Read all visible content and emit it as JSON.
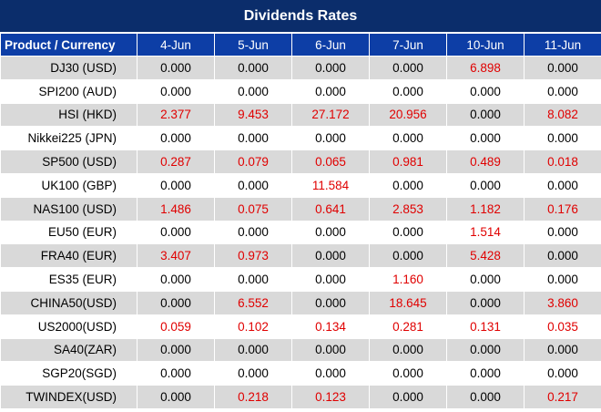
{
  "title": "Dividends Rates",
  "columns": [
    "Product / Currency",
    "4-Jun",
    "5-Jun",
    "6-Jun",
    "7-Jun",
    "10-Jun",
    "11-Jun"
  ],
  "rows": [
    {
      "name": "DJ30 (USD)",
      "values": [
        "0.000",
        "0.000",
        "0.000",
        "0.000",
        "6.898",
        "0.000"
      ]
    },
    {
      "name": "SPI200 (AUD)",
      "values": [
        "0.000",
        "0.000",
        "0.000",
        "0.000",
        "0.000",
        "0.000"
      ]
    },
    {
      "name": "HSI (HKD)",
      "values": [
        "2.377",
        "9.453",
        "27.172",
        "20.956",
        "0.000",
        "8.082"
      ]
    },
    {
      "name": "Nikkei225 (JPN)",
      "values": [
        "0.000",
        "0.000",
        "0.000",
        "0.000",
        "0.000",
        "0.000"
      ]
    },
    {
      "name": "SP500 (USD)",
      "values": [
        "0.287",
        "0.079",
        "0.065",
        "0.981",
        "0.489",
        "0.018"
      ]
    },
    {
      "name": "UK100 (GBP)",
      "values": [
        "0.000",
        "0.000",
        "11.584",
        "0.000",
        "0.000",
        "0.000"
      ]
    },
    {
      "name": "NAS100 (USD)",
      "values": [
        "1.486",
        "0.075",
        "0.641",
        "2.853",
        "1.182",
        "0.176"
      ]
    },
    {
      "name": "EU50 (EUR)",
      "values": [
        "0.000",
        "0.000",
        "0.000",
        "0.000",
        "1.514",
        "0.000"
      ]
    },
    {
      "name": "FRA40 (EUR)",
      "values": [
        "3.407",
        "0.973",
        "0.000",
        "0.000",
        "5.428",
        "0.000"
      ]
    },
    {
      "name": "ES35 (EUR)",
      "values": [
        "0.000",
        "0.000",
        "0.000",
        "1.160",
        "0.000",
        "0.000"
      ]
    },
    {
      "name": "CHINA50(USD)",
      "values": [
        "0.000",
        "6.552",
        "0.000",
        "18.645",
        "0.000",
        "3.860"
      ]
    },
    {
      "name": "US2000(USD)",
      "values": [
        "0.059",
        "0.102",
        "0.134",
        "0.281",
        "0.131",
        "0.035"
      ]
    },
    {
      "name": "SA40(ZAR)",
      "values": [
        "0.000",
        "0.000",
        "0.000",
        "0.000",
        "0.000",
        "0.000"
      ]
    },
    {
      "name": "SGP20(SGD)",
      "values": [
        "0.000",
        "0.000",
        "0.000",
        "0.000",
        "0.000",
        "0.000"
      ]
    },
    {
      "name": "TWINDEX(USD)",
      "values": [
        "0.000",
        "0.218",
        "0.123",
        "0.000",
        "0.000",
        "0.217"
      ]
    }
  ],
  "colors": {
    "title_bg": "#0b2d6b",
    "header_bg": "#0d3ea6",
    "stripe": "#d9d9d9",
    "positive_value": "#e00000"
  }
}
